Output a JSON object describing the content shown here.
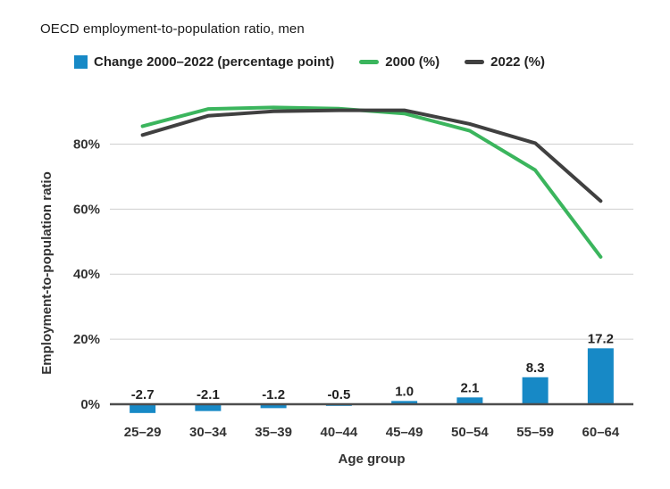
{
  "title": "OECD employment-to-population ratio, men",
  "legend": {
    "bar": {
      "label": "Change 2000–2022 (percentage point)",
      "color": "#1789c6"
    },
    "line2000": {
      "label": "2000 (%)",
      "color": "#3bb55d"
    },
    "line2022": {
      "label": "2022 (%)",
      "color": "#404040"
    }
  },
  "chart_data": {
    "type": "combo-bar-line",
    "title": "OECD employment-to-population ratio, men",
    "xlabel": "Age group",
    "ylabel": "Employment-to-population ratio",
    "categories": [
      "25–29",
      "30–34",
      "35–39",
      "40–44",
      "45–49",
      "50–54",
      "55–59",
      "60–64"
    ],
    "bar_series": {
      "name": "Change 2000–2022 (percentage point)",
      "color": "#1789c6",
      "values": [
        -2.7,
        -2.1,
        -1.2,
        -0.5,
        1.0,
        2.1,
        8.3,
        17.2
      ],
      "value_labels": [
        "-2.7",
        "-2.1",
        "-1.2",
        "-0.5",
        "1.0",
        "2.1",
        "8.3",
        "17.2"
      ]
    },
    "line_series": [
      {
        "name": "2000 (%)",
        "color": "#3bb55d",
        "values": [
          85.5,
          90.8,
          91.3,
          90.9,
          89.4,
          84.1,
          72.0,
          45.3
        ]
      },
      {
        "name": "2022 (%)",
        "color": "#404040",
        "values": [
          82.8,
          88.7,
          90.1,
          90.4,
          90.4,
          86.2,
          80.3,
          62.5
        ]
      }
    ],
    "y_ticks": [
      0,
      20,
      40,
      60,
      80
    ],
    "y_tick_suffix": "%",
    "ylim": [
      -8,
      94
    ],
    "grid": true,
    "legend_position": "top",
    "grid_color": "#cfcfcf",
    "zero_axis_color": "#4d4d4d"
  }
}
